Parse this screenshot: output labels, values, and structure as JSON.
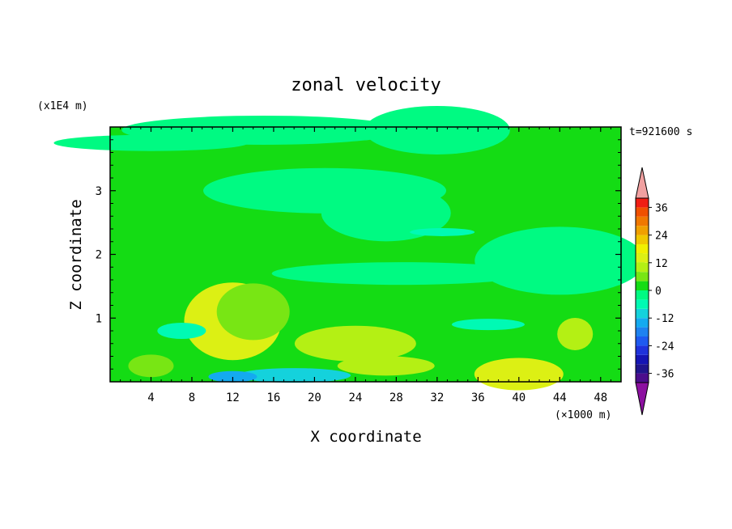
{
  "chart_data": {
    "type": "heatmap",
    "title": "zonal velocity",
    "xlabel": "X coordinate",
    "ylabel": "Z coordinate",
    "x_unit": "(×1000 m)",
    "y_unit": "(x1E4 m)",
    "time_label": "t=921600 s",
    "xlim": [
      0,
      50
    ],
    "ylim": [
      0,
      4
    ],
    "x_ticks": [
      "4",
      "8",
      "12",
      "16",
      "20",
      "24",
      "28",
      "32",
      "36",
      "40",
      "44",
      "48"
    ],
    "y_ticks": [
      "1",
      "2",
      "3"
    ],
    "colorbar": {
      "levels": [
        -40,
        -36,
        -32,
        -28,
        -24,
        -20,
        -16,
        -12,
        -8,
        -4,
        0,
        4,
        8,
        12,
        16,
        20,
        24,
        28,
        32,
        36,
        40
      ],
      "colors": [
        "#4b0d8c",
        "#1f148c",
        "#1414b4",
        "#1e32dc",
        "#1e5af0",
        "#1e82f0",
        "#14aaf0",
        "#14d2dc",
        "#00fab4",
        "#00fa82",
        "#14dc14",
        "#78e614",
        "#b4f014",
        "#dcf014",
        "#f0f000",
        "#f0c800",
        "#f0a000",
        "#f07800",
        "#f05000",
        "#f01e14"
      ],
      "under_color": "#8c10a0",
      "over_color": "#f0a0a0",
      "tick_labels": [
        "36",
        "24",
        "12",
        "0",
        "-12",
        "-24",
        "-36"
      ]
    },
    "field_summary": {
      "background_value": 2,
      "regions": [
        {
          "x": 12,
          "z": 0.08,
          "value": -14
        },
        {
          "x": 18,
          "z": 0.1,
          "value": -10
        },
        {
          "x": 7,
          "z": 0.8,
          "value": -8
        },
        {
          "x": 32.5,
          "z": 2.35,
          "value": -7
        },
        {
          "x": 37,
          "z": 0.9,
          "value": -8
        },
        {
          "x": 40,
          "z": 0.12,
          "value": 13
        },
        {
          "x": 12,
          "z": 0.95,
          "value": 12
        },
        {
          "x": 14,
          "z": 1.1,
          "value": 7
        },
        {
          "x": 24,
          "z": 0.6,
          "value": 9
        },
        {
          "x": 45.5,
          "z": 0.75,
          "value": 8
        },
        {
          "x": 4,
          "z": 0.25,
          "value": 6
        },
        {
          "x": 27,
          "z": 0.25,
          "value": 8
        },
        {
          "x": 28.5,
          "z": 1.7,
          "value": -2
        },
        {
          "x": 44,
          "z": 1.9,
          "value": -2
        },
        {
          "x": 21,
          "z": 3.0,
          "value": -2
        },
        {
          "x": 27,
          "z": 2.65,
          "value": -2
        },
        {
          "x": 32,
          "z": 3.95,
          "value": -1
        },
        {
          "x": 4,
          "z": 3.75,
          "value": -1
        },
        {
          "x": 15,
          "z": 3.95,
          "value": -1
        }
      ]
    }
  }
}
